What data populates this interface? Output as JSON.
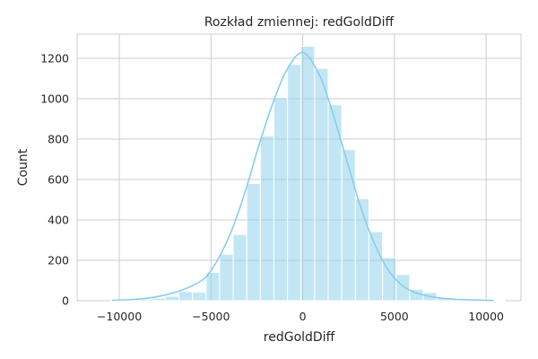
{
  "chart_data": {
    "type": "bar",
    "title": "Rozkład zmiennej: redGoldDiff",
    "xlabel": "redGoldDiff",
    "ylabel": "Count",
    "xlim": [
      -12300,
      11900
    ],
    "ylim": [
      0,
      1320
    ],
    "xticks": [
      -10000,
      -5000,
      0,
      5000,
      10000
    ],
    "xtick_labels": [
      "−10000",
      "−5000",
      "0",
      "5000",
      "10000"
    ],
    "yticks": [
      0,
      200,
      400,
      600,
      800,
      1000,
      1200
    ],
    "ytick_labels": [
      "0",
      "200",
      "400",
      "600",
      "800",
      "1000",
      "1200"
    ],
    "grid": true,
    "bar_color": "#87ceeb",
    "line_color": "#87ceeb",
    "bin_width": 740,
    "bins": [
      {
        "x0": -10450,
        "x1": -9710,
        "count": 2
      },
      {
        "x0": -9710,
        "x1": -8970,
        "count": 5
      },
      {
        "x0": -8970,
        "x1": -8230,
        "count": 8
      },
      {
        "x0": -8230,
        "x1": -7490,
        "count": 13
      },
      {
        "x0": -7490,
        "x1": -6750,
        "count": 22
      },
      {
        "x0": -6750,
        "x1": -6010,
        "count": 45
      },
      {
        "x0": -6010,
        "x1": -5270,
        "count": 42
      },
      {
        "x0": -5270,
        "x1": -4530,
        "count": 140
      },
      {
        "x0": -4530,
        "x1": -3790,
        "count": 230
      },
      {
        "x0": -3790,
        "x1": -3050,
        "count": 328
      },
      {
        "x0": -3050,
        "x1": -2310,
        "count": 580
      },
      {
        "x0": -2310,
        "x1": -1570,
        "count": 815
      },
      {
        "x0": -1570,
        "x1": -830,
        "count": 1005
      },
      {
        "x0": -830,
        "x1": -90,
        "count": 1170
      },
      {
        "x0": -90,
        "x1": 650,
        "count": 1260
      },
      {
        "x0": 650,
        "x1": 1390,
        "count": 1150
      },
      {
        "x0": 1390,
        "x1": 2130,
        "count": 970
      },
      {
        "x0": 2130,
        "x1": 2870,
        "count": 748
      },
      {
        "x0": 2870,
        "x1": 3610,
        "count": 505
      },
      {
        "x0": 3610,
        "x1": 4350,
        "count": 342
      },
      {
        "x0": 4350,
        "x1": 5090,
        "count": 213
      },
      {
        "x0": 5090,
        "x1": 5830,
        "count": 130
      },
      {
        "x0": 5830,
        "x1": 6570,
        "count": 55
      },
      {
        "x0": 6570,
        "x1": 7310,
        "count": 40
      },
      {
        "x0": 7310,
        "x1": 8050,
        "count": 15
      },
      {
        "x0": 8050,
        "x1": 8790,
        "count": 9
      },
      {
        "x0": 8790,
        "x1": 9530,
        "count": 5
      },
      {
        "x0": 9530,
        "x1": 10270,
        "count": 3
      },
      {
        "x0": 10270,
        "x1": 11010,
        "count": 1
      }
    ],
    "kde": {
      "x": [
        -10400,
        -9500,
        -8500,
        -7500,
        -6500,
        -5500,
        -5000,
        -4500,
        -4000,
        -3500,
        -3000,
        -2500,
        -2000,
        -1500,
        -1000,
        -500,
        -250,
        0,
        250,
        500,
        1000,
        1500,
        2000,
        2500,
        3000,
        3500,
        4000,
        4500,
        5000,
        5500,
        6000,
        6500,
        7000,
        7500,
        8500,
        9500,
        10400
      ],
      "y": [
        2,
        5,
        12,
        28,
        55,
        100,
        150,
        225,
        320,
        440,
        580,
        735,
        880,
        1010,
        1120,
        1195,
        1220,
        1230,
        1215,
        1185,
        1100,
        970,
        820,
        665,
        510,
        375,
        265,
        175,
        112,
        70,
        45,
        30,
        20,
        13,
        6,
        3,
        1
      ]
    }
  }
}
